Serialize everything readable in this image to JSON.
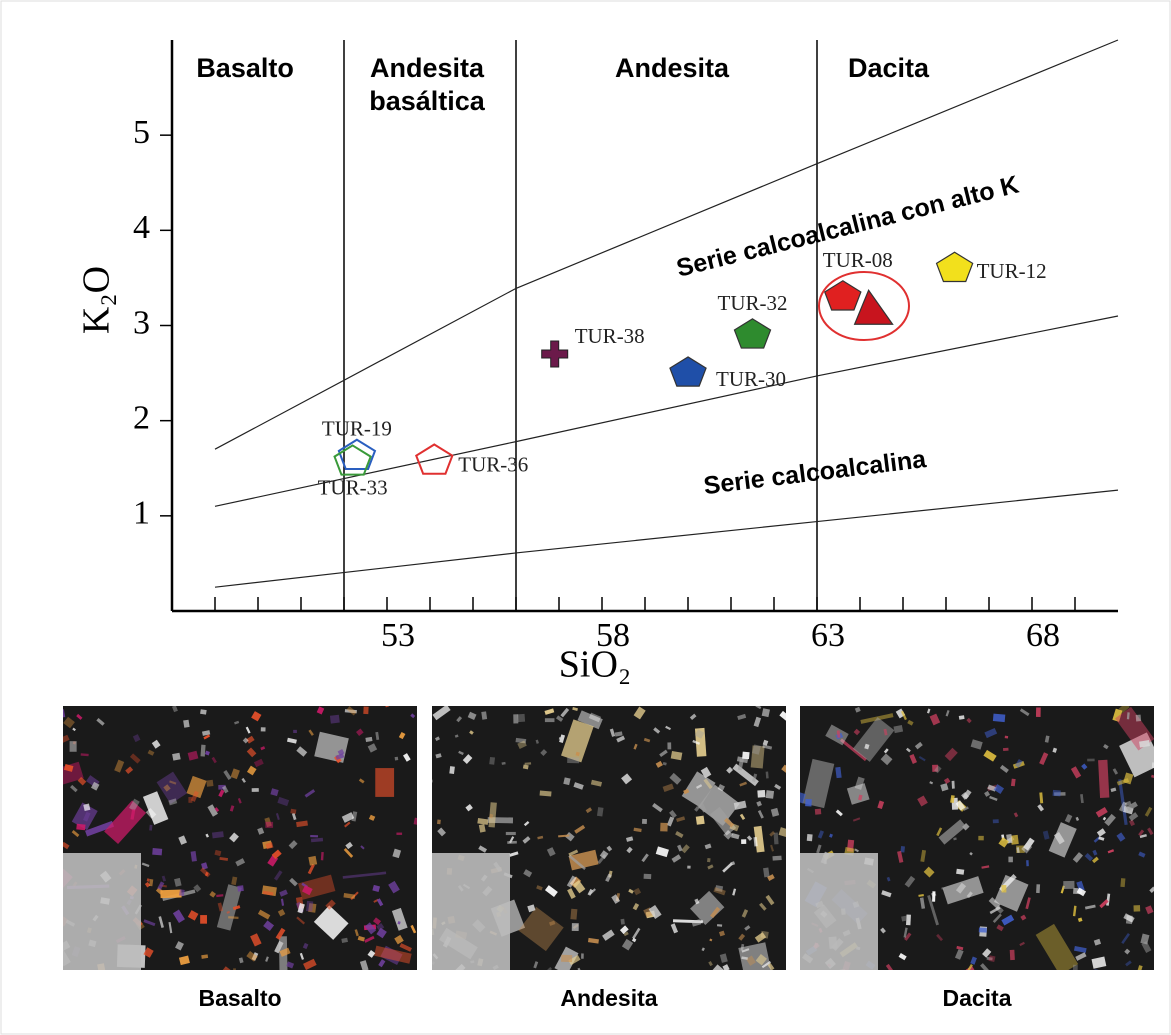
{
  "chart_data": {
    "type": "scatter",
    "x_label": "SiO₂",
    "y_label": "K₂O",
    "xlim": [
      48,
      70
    ],
    "ylim": [
      0,
      6
    ],
    "xticks": [
      53,
      58,
      63,
      68
    ],
    "xminorticks": [
      49,
      50,
      51,
      52,
      53,
      54,
      55,
      56,
      57,
      58,
      59,
      60,
      61,
      62,
      63,
      64,
      65,
      66,
      67,
      68,
      69
    ],
    "yticks": [
      1,
      2,
      3,
      4,
      5
    ],
    "dividers": [
      52,
      56,
      63
    ],
    "regions": [
      {
        "label": "Basalto",
        "x": 49.7
      },
      {
        "label": "Andesita\nbasáltica",
        "x": 54
      },
      {
        "label": "Andesita",
        "x": 59.7
      },
      {
        "label": "Dacita",
        "x": 64
      }
    ],
    "boundaries": [
      {
        "x": [
          49,
          56,
          63,
          70
        ],
        "y": [
          1.7,
          3.39,
          4.7,
          6
        ]
      },
      {
        "x": [
          49,
          56,
          63,
          70
        ],
        "y": [
          1.1,
          1.78,
          2.47,
          3.1
        ]
      },
      {
        "x": [
          49,
          56,
          63,
          70
        ],
        "y": [
          0.25,
          0.61,
          0.94,
          1.27
        ]
      }
    ],
    "series_labels": [
      "Serie calcoalcalina con alto K",
      "Serie calcoalcalina"
    ],
    "points": [
      {
        "label": "TUR-38",
        "x": 56.9,
        "y": 2.7,
        "color": "#6b1a4a",
        "marker": "cross",
        "filled": true
      },
      {
        "label": "TUR-30",
        "x": 60.0,
        "y": 2.5,
        "color": "#1f4fa8",
        "marker": "pentagon",
        "filled": true
      },
      {
        "label": "TUR-32",
        "x": 61.5,
        "y": 2.9,
        "color": "#2e8b2e",
        "marker": "pentagon",
        "filled": true
      },
      {
        "label": "TUR-08",
        "x": 63.6,
        "y": 3.3,
        "color": "#e02020",
        "marker": "pentagon",
        "filled": true
      },
      {
        "label": null,
        "x": 64.2,
        "y": 3.16,
        "color": "#c8141e",
        "marker": "triangle",
        "filled": true
      },
      {
        "label": "TUR-12",
        "x": 66.2,
        "y": 3.6,
        "color": "#f2e01c",
        "marker": "pentagon",
        "filled": true
      },
      {
        "label": "TUR-19",
        "x": 52.3,
        "y": 1.63,
        "color": "#2a5fc0",
        "marker": "pentagon",
        "filled": false
      },
      {
        "label": "TUR-33",
        "x": 52.2,
        "y": 1.57,
        "color": "#3a9a3a",
        "marker": "pentagon",
        "filled": false
      },
      {
        "label": "TUR-36",
        "x": 54.1,
        "y": 1.58,
        "color": "#e03030",
        "marker": "pentagon",
        "filled": false
      }
    ]
  },
  "photos": [
    {
      "caption": "Basalto"
    },
    {
      "caption": "Andesita"
    },
    {
      "caption": "Dacita"
    }
  ]
}
